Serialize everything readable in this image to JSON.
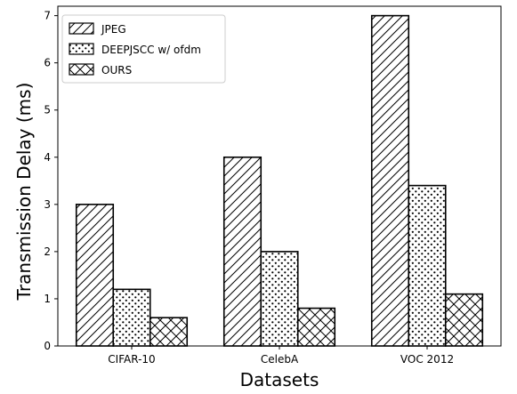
{
  "chart_data": {
    "type": "bar",
    "categories": [
      "CIFAR-10",
      "CelebA",
      "VOC 2012"
    ],
    "series": [
      {
        "name": "JPEG",
        "values": [
          3.0,
          4.0,
          7.0
        ],
        "hatch": "diagonal"
      },
      {
        "name": "DEEPJSCC w/ ofdm",
        "values": [
          1.2,
          2.0,
          3.4
        ],
        "hatch": "dots"
      },
      {
        "name": "OURS",
        "values": [
          0.6,
          0.8,
          1.1
        ],
        "hatch": "crosshatch"
      }
    ],
    "title": "",
    "xlabel": "Datasets",
    "ylabel": "Transmission Delay (ms)",
    "ylim": [
      0,
      7.2
    ],
    "yticks": [
      0,
      1,
      2,
      3,
      4,
      5,
      6,
      7
    ],
    "grid": false,
    "legend_position": "top-left",
    "colors": {
      "bar_fill": "#ffffff",
      "bar_edge": "#000000",
      "hatch": "#000000"
    }
  }
}
